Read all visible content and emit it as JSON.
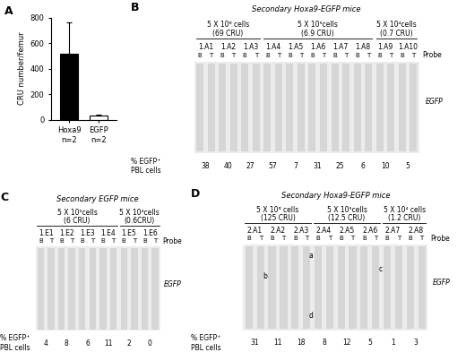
{
  "chart_data": {
    "type": "bar",
    "label": "A",
    "categories": [
      "Hoxa9\nn=2",
      "EGFP\nn=2"
    ],
    "values": [
      520,
      30
    ],
    "errors": [
      245,
      10
    ],
    "colors": [
      "#000000",
      "#ffffff"
    ],
    "y_label": "CRU number/femur",
    "ylim": [
      0,
      800
    ],
    "yticks": [
      0,
      200,
      400,
      600,
      800
    ],
    "grid": false
  },
  "blots": [
    {
      "label": "B",
      "title": "Secondary Hoxa9-EGFP mice",
      "probe": "Probe",
      "probe_name": "EGFP",
      "sublanes": [
        "B",
        "T"
      ],
      "pct_label": "% EGFP⁺\nPBL cells",
      "groups": [
        {
          "cells": "5 X 10⁶ cells",
          "cru": "(69 CRU)",
          "lanes": [
            "1.A1",
            "1.A2",
            "1.A3"
          ]
        },
        {
          "cells": "5 X 10⁵cells",
          "cru": "(6.9 CRU)",
          "lanes": [
            "1.A4",
            "1.A5",
            "1.A6",
            "1.A7",
            "1.A8"
          ]
        },
        {
          "cells": "5 X 10⁴cells",
          "cru": "(0.7 CRU)",
          "lanes": [
            "1.A9",
            "1.A10"
          ]
        }
      ],
      "pct": [
        38,
        40,
        27,
        57,
        7,
        31,
        25,
        6,
        10,
        5
      ],
      "annotations": []
    },
    {
      "label": "C",
      "title": "Secondary EGFP mice",
      "probe": "Probe",
      "probe_name": "EGFP",
      "sublanes": [
        "B",
        "T"
      ],
      "pct_label": "% EGFP⁺\nPBL cells",
      "groups": [
        {
          "cells": "5 X 10⁵cells",
          "cru": "(6 CRU)",
          "lanes": [
            "1.E1",
            "1.E2",
            "1.E3",
            "1.E4"
          ]
        },
        {
          "cells": "5 X 10⁴cells",
          "cru": "(0.6CRU)",
          "lanes": [
            "1.E5",
            "1.E6"
          ]
        }
      ],
      "pct": [
        4,
        8,
        6,
        11,
        2,
        0
      ],
      "annotations": []
    },
    {
      "label": "D",
      "title": "Secondary Hoxa9-EGFP mice",
      "probe": "Probe",
      "probe_name": "EGFP",
      "sublanes": [
        "B",
        "T"
      ],
      "pct_label": "% EGFP⁺\nPBL cells",
      "groups": [
        {
          "cells": "5 X 10⁶ cells",
          "cru": "(125 CRU)",
          "lanes": [
            "2.A1",
            "2.A2",
            "2.A3"
          ]
        },
        {
          "cells": "5 X 10⁵cells",
          "cru": "(12.5 CRU)",
          "lanes": [
            "2.A4",
            "2.A5",
            "2.A6"
          ]
        },
        {
          "cells": "5 X 10⁴ cells",
          "cru": "(1.2 CRU)",
          "lanes": [
            "2.A7",
            "2.A8"
          ]
        }
      ],
      "pct": [
        31,
        11,
        18,
        8,
        12,
        5,
        1,
        3
      ],
      "annotations": [
        "a",
        "b",
        "c",
        "d"
      ]
    }
  ]
}
